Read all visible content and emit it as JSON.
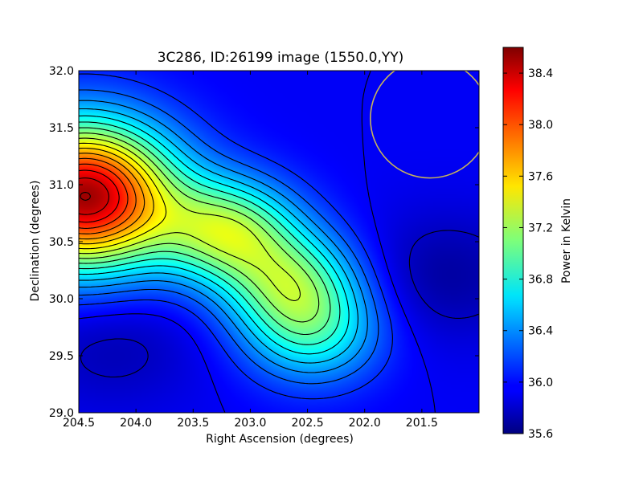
{
  "chart_data": {
    "type": "heatmap",
    "title": "3C286, ID:26199 image (1550.0,YY)",
    "xlabel": "Right Ascension (degrees)",
    "ylabel": "Declination (degrees)",
    "xlim": [
      204.5,
      201.0
    ],
    "ylim": [
      29.0,
      32.0
    ],
    "x_ticks": [
      "204.5",
      "204.0",
      "203.5",
      "203.0",
      "202.5",
      "202.0",
      "201.5"
    ],
    "y_ticks": [
      "29.0",
      "29.5",
      "30.0",
      "30.5",
      "31.0",
      "31.5",
      "32.0"
    ],
    "colorbar": {
      "label": "Power in Kelvin",
      "range": [
        35.6,
        38.6
      ],
      "ticks": [
        "35.6",
        "36.0",
        "36.4",
        "36.8",
        "37.2",
        "37.6",
        "38.0",
        "38.4"
      ],
      "colormap": "jet"
    },
    "features": [
      {
        "kind": "maximum",
        "ra": 204.45,
        "dec": 30.9,
        "value": 38.5
      },
      {
        "kind": "ridge",
        "ra": 203.2,
        "dec": 30.6,
        "value": 37.1
      },
      {
        "kind": "ridge",
        "ra": 202.65,
        "dec": 30.15,
        "value": 36.9
      },
      {
        "kind": "ridge",
        "ra": 202.45,
        "dec": 29.7,
        "value": 36.7
      },
      {
        "kind": "minimum",
        "ra": 204.2,
        "dec": 29.6,
        "value": 35.75
      },
      {
        "kind": "minimum",
        "ra": 201.3,
        "dec": 30.2,
        "value": 35.7
      },
      {
        "kind": "minimum",
        "ra": 202.4,
        "dec": 31.3,
        "value": 35.95
      }
    ],
    "beam_circle": {
      "ra": 201.43,
      "dec": 31.58,
      "radius_deg": 0.52,
      "color": "#c8b45a"
    },
    "contour_color": "#000000"
  }
}
